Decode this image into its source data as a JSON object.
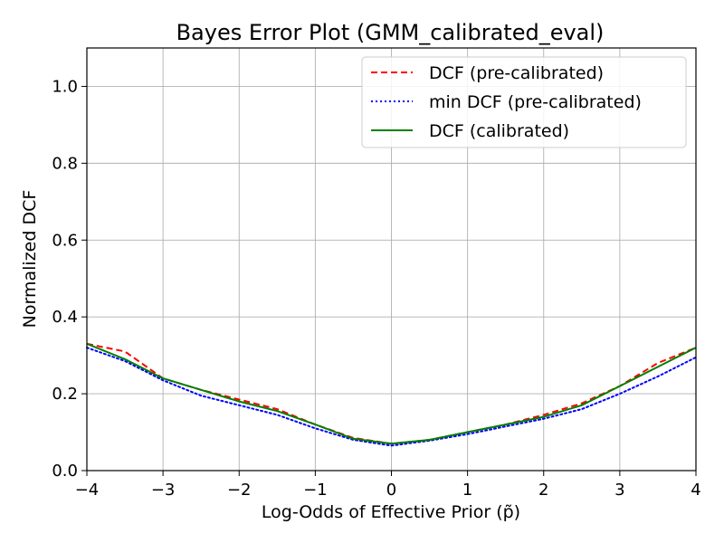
{
  "chart_data": {
    "type": "line",
    "title": "Bayes Error Plot (GMM_calibrated_eval)",
    "xlabel": "Log-Odds of Effective Prior (p̃)",
    "ylabel": "Normalized DCF",
    "xlim": [
      -4,
      4
    ],
    "ylim": [
      0,
      1.1
    ],
    "xticks": [
      -4,
      -3,
      -2,
      -1,
      0,
      1,
      2,
      3,
      4
    ],
    "xtick_labels": [
      "−4",
      "−3",
      "−2",
      "−1",
      "0",
      "1",
      "2",
      "3",
      "4"
    ],
    "yticks": [
      0.0,
      0.2,
      0.4,
      0.6,
      0.8,
      1.0
    ],
    "ytick_labels": [
      "0.0",
      "0.2",
      "0.4",
      "0.6",
      "0.8",
      "1.0"
    ],
    "grid": true,
    "legend_position": "top-right",
    "x": [
      -4.0,
      -3.5,
      -3.0,
      -2.5,
      -2.0,
      -1.5,
      -1.0,
      -0.5,
      0.0,
      0.5,
      1.0,
      1.5,
      2.0,
      2.5,
      3.0,
      3.5,
      4.0
    ],
    "series": [
      {
        "name": "DCF (pre-calibrated)",
        "color": "#ff0000",
        "style": "dashed",
        "values": [
          0.33,
          0.31,
          0.24,
          0.21,
          0.185,
          0.16,
          0.12,
          0.085,
          0.07,
          0.08,
          0.1,
          0.12,
          0.145,
          0.175,
          0.22,
          0.28,
          0.32
        ]
      },
      {
        "name": "min DCF (pre-calibrated)",
        "color": "#0000ff",
        "style": "dotted",
        "values": [
          0.32,
          0.285,
          0.235,
          0.195,
          0.17,
          0.145,
          0.11,
          0.08,
          0.065,
          0.078,
          0.095,
          0.115,
          0.135,
          0.16,
          0.2,
          0.245,
          0.295
        ]
      },
      {
        "name": "DCF (calibrated)",
        "color": "#008000",
        "style": "solid",
        "values": [
          0.33,
          0.29,
          0.24,
          0.21,
          0.18,
          0.155,
          0.12,
          0.083,
          0.07,
          0.08,
          0.1,
          0.12,
          0.14,
          0.17,
          0.22,
          0.27,
          0.32
        ]
      }
    ]
  }
}
